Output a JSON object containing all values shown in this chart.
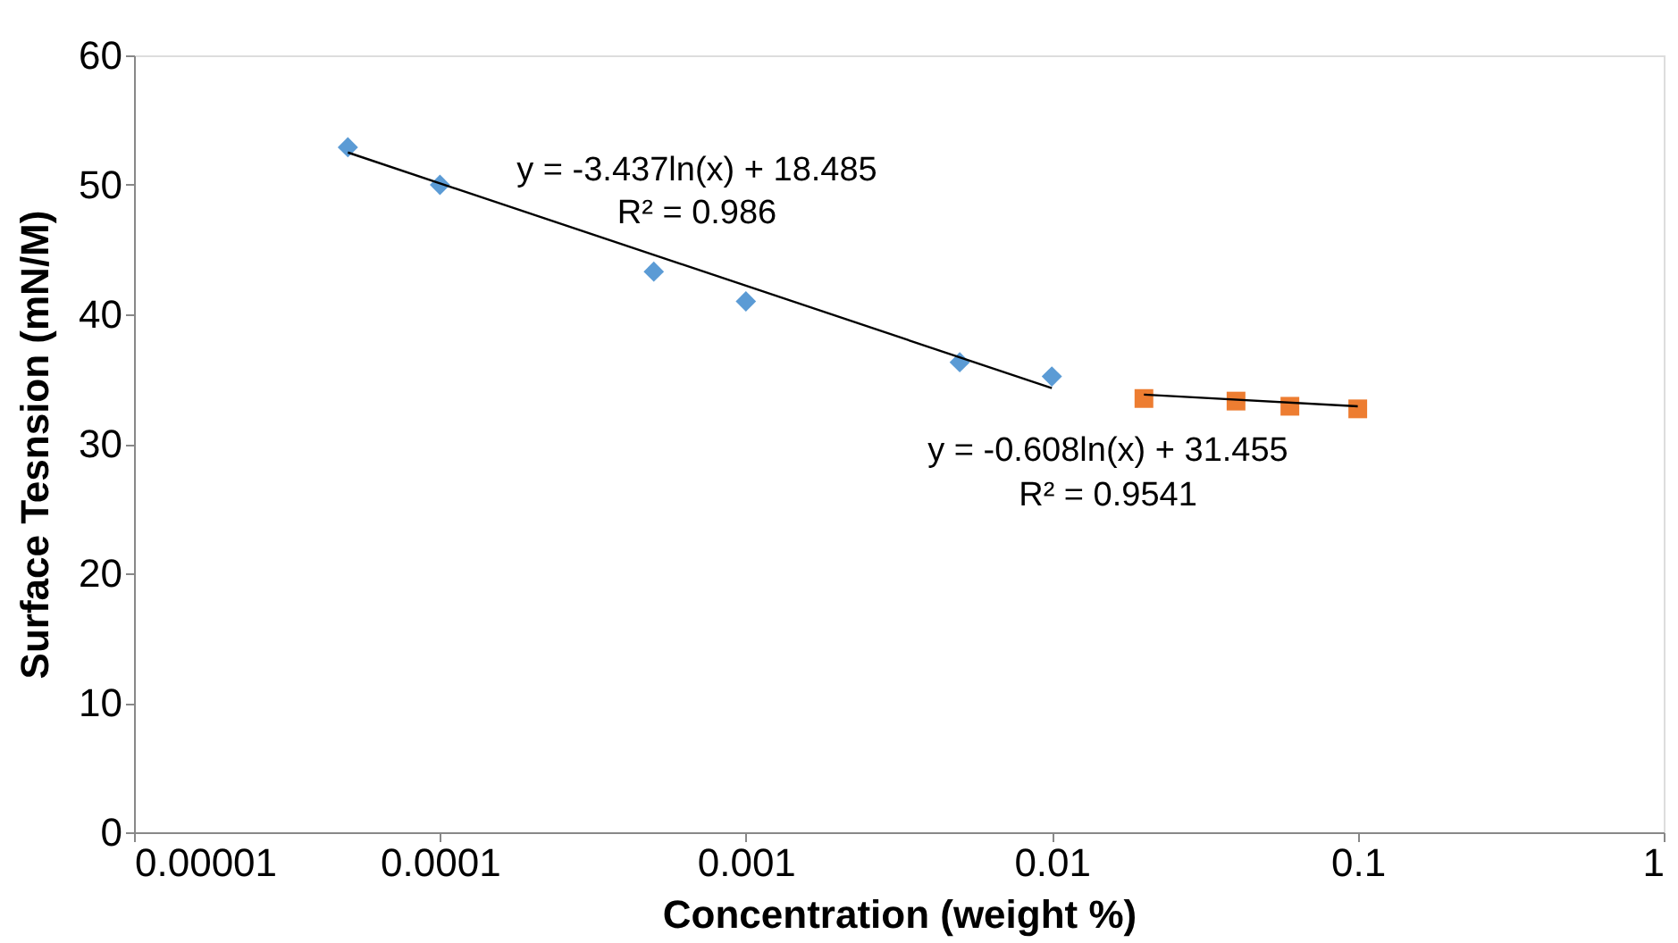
{
  "chart_data": {
    "type": "scatter",
    "xlabel": "Concentration (weight %)",
    "ylabel": "Surface Tesnsion (mN/M)",
    "log": "x",
    "xlim": [
      1e-05,
      1
    ],
    "xticks": [
      {
        "value": 1e-05,
        "label": "0.00001"
      },
      0.0001,
      0.001,
      0.01,
      0.1,
      1
    ],
    "ylim": [
      0,
      60
    ],
    "yticks": [
      0,
      10,
      20,
      30,
      40,
      50,
      60
    ],
    "grid": false,
    "series": [
      {
        "marker": "diamond",
        "color": "#5b9bd5",
        "x": [
          5e-05,
          0.0001,
          0.0005,
          0.001,
          0.005,
          0.01
        ],
        "values": [
          52.9,
          50.0,
          43.3,
          41.0,
          36.3,
          35.2
        ]
      },
      {
        "marker": "square",
        "color": "#ed7d31",
        "x": [
          0.02,
          0.04,
          0.06,
          0.1
        ],
        "values": [
          33.5,
          33.3,
          32.9,
          32.7
        ]
      },
      {
        "type": "line",
        "color": "#000000",
        "x": [
          5e-05,
          0.01
        ],
        "values": [
          52.5,
          34.3
        ]
      },
      {
        "type": "line",
        "color": "#000000",
        "x": [
          0.02,
          0.1
        ],
        "values": [
          33.8,
          32.9
        ]
      }
    ],
    "annotations": [
      "y = -3.437ln(x) + 18.485",
      "R² = 0.986",
      "y = -0.608ln(x) + 31.455",
      "R² = 0.9541"
    ]
  }
}
